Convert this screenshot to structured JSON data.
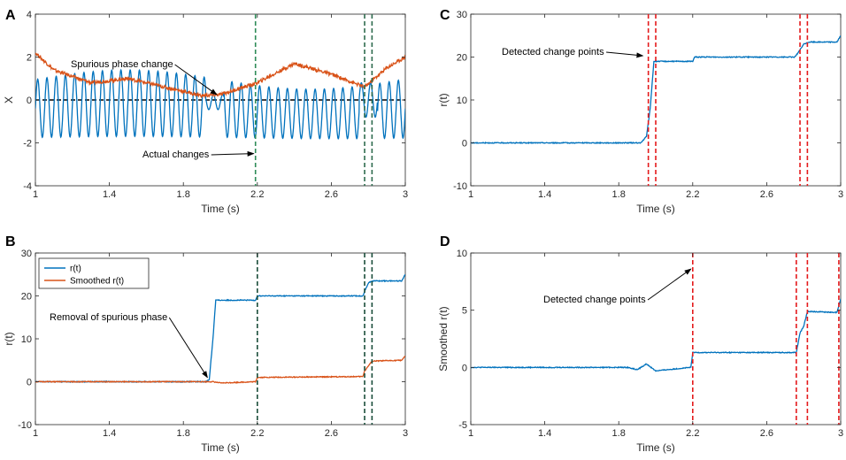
{
  "chart_data": [
    {
      "panel": "A",
      "type": "line",
      "xlabel": "Time (s)",
      "ylabel": "X",
      "xlim": [
        1,
        3
      ],
      "ylim": [
        -4,
        4
      ],
      "xticks": [
        1,
        1.4,
        1.8,
        2.2,
        2.6,
        3
      ],
      "xtick_labels": [
        "1",
        "1.4",
        "1.8",
        "2.2",
        "2.6",
        "3"
      ],
      "yticks": [
        -4,
        -2,
        0,
        2,
        4
      ],
      "ytick_labels": [
        "-4",
        "-2",
        "0",
        "2",
        "4"
      ],
      "series": [
        {
          "name": "signal",
          "color": "#0072BD",
          "description": "oscillating signal, period about 0.05 s, amplitude about 1.3, flattening near 1.95-2.0"
        },
        {
          "name": "envelope",
          "color": "#D95319",
          "values": [
            [
              1.0,
              2.2
            ],
            [
              1.1,
              1.4
            ],
            [
              1.3,
              0.8
            ],
            [
              1.5,
              1.0
            ],
            [
              1.7,
              0.6
            ],
            [
              1.9,
              0.2
            ],
            [
              2.0,
              0.25
            ],
            [
              2.2,
              0.8
            ],
            [
              2.4,
              1.7
            ],
            [
              2.6,
              1.2
            ],
            [
              2.78,
              0.6
            ],
            [
              2.9,
              1.5
            ],
            [
              3.0,
              2.0
            ]
          ]
        }
      ],
      "hlines": [
        {
          "y": 0,
          "style": "dashed",
          "color": "#000000"
        }
      ],
      "vlines": [
        {
          "x": 2.19,
          "color": "#2E8B57"
        },
        {
          "x": 2.78,
          "color": "#2E6B4E"
        },
        {
          "x": 2.82,
          "color": "#2E6B4E"
        }
      ],
      "annotations": [
        {
          "text": "Spurious phase change",
          "target": [
            1.98,
            0.25
          ]
        },
        {
          "text": "Actual changes",
          "target": [
            2.18,
            -2.5
          ]
        }
      ]
    },
    {
      "panel": "B",
      "type": "line",
      "xlabel": "Time (s)",
      "ylabel": "r(t)",
      "xlim": [
        1,
        3
      ],
      "ylim": [
        -10,
        30
      ],
      "xticks": [
        1,
        1.4,
        1.8,
        2.2,
        2.6,
        3
      ],
      "xtick_labels": [
        "1",
        "1.4",
        "1.8",
        "2.2",
        "2.6",
        "3"
      ],
      "yticks": [
        -10,
        0,
        10,
        20,
        30
      ],
      "ytick_labels": [
        "-10",
        "0",
        "10",
        "20",
        "30"
      ],
      "legend": {
        "placement": "top-left",
        "entries": [
          "r(t)",
          "Smoothed r(t)"
        ]
      },
      "series": [
        {
          "name": "r(t)",
          "color": "#0072BD",
          "values": [
            [
              1.0,
              0
            ],
            [
              1.92,
              0
            ],
            [
              1.94,
              0.5
            ],
            [
              1.96,
              10
            ],
            [
              1.975,
              19
            ],
            [
              2.19,
              19
            ],
            [
              2.2,
              20
            ],
            [
              2.77,
              20
            ],
            [
              2.78,
              21
            ],
            [
              2.8,
              23
            ],
            [
              2.82,
              23.5
            ],
            [
              2.98,
              23.5
            ],
            [
              3.0,
              25
            ]
          ]
        },
        {
          "name": "Smoothed r(t)",
          "color": "#D95319",
          "values": [
            [
              1.0,
              0
            ],
            [
              1.96,
              0
            ],
            [
              2.0,
              -0.3
            ],
            [
              2.19,
              0
            ],
            [
              2.2,
              1
            ],
            [
              2.77,
              1.2
            ],
            [
              2.78,
              2.5
            ],
            [
              2.82,
              4.8
            ],
            [
              2.98,
              5
            ],
            [
              3.0,
              6
            ]
          ]
        }
      ],
      "vlines": [
        {
          "x": 2.2,
          "color": "#1A4D3A"
        },
        {
          "x": 2.78,
          "color": "#1A4D3A"
        },
        {
          "x": 2.82,
          "color": "#1A4D3A"
        }
      ],
      "annotations": [
        {
          "text": "Removal of spurious phase",
          "target": [
            1.93,
            1
          ]
        }
      ]
    },
    {
      "panel": "C",
      "type": "line",
      "xlabel": "Time (s)",
      "ylabel": "r(t)",
      "xlim": [
        1,
        3
      ],
      "ylim": [
        -10,
        30
      ],
      "xticks": [
        1,
        1.4,
        1.8,
        2.2,
        2.6,
        3
      ],
      "xtick_labels": [
        "1",
        "1.4",
        "1.8",
        "2.2",
        "2.6",
        "3"
      ],
      "yticks": [
        -10,
        0,
        10,
        20,
        30
      ],
      "ytick_labels": [
        "-10",
        "0",
        "10",
        "20",
        "30"
      ],
      "series": [
        {
          "name": "r(t)",
          "color": "#0072BD",
          "values": [
            [
              1.0,
              0
            ],
            [
              1.92,
              0
            ],
            [
              1.95,
              1.5
            ],
            [
              1.97,
              8
            ],
            [
              1.99,
              19
            ],
            [
              2.2,
              19
            ],
            [
              2.21,
              20
            ],
            [
              2.75,
              20
            ],
            [
              2.77,
              21
            ],
            [
              2.8,
              23
            ],
            [
              2.83,
              23.5
            ],
            [
              2.98,
              23.5
            ],
            [
              3.0,
              25
            ]
          ]
        }
      ],
      "vlines": [
        {
          "x": 1.96,
          "color": "#E41A1C"
        },
        {
          "x": 2.0,
          "color": "#E41A1C"
        },
        {
          "x": 2.78,
          "color": "#E41A1C"
        },
        {
          "x": 2.82,
          "color": "#E41A1C"
        }
      ],
      "annotations": [
        {
          "text": "Detected change points",
          "target": [
            1.93,
            20.3
          ]
        }
      ]
    },
    {
      "panel": "D",
      "type": "line",
      "xlabel": "Time (s)",
      "ylabel": "Smoothed r(t)",
      "xlim": [
        1,
        3
      ],
      "ylim": [
        -5,
        10
      ],
      "xticks": [
        1,
        1.4,
        1.8,
        2.2,
        2.6,
        3
      ],
      "xtick_labels": [
        "1",
        "1.4",
        "1.8",
        "2.2",
        "2.6",
        "3"
      ],
      "yticks": [
        -5,
        0,
        5,
        10
      ],
      "ytick_labels": [
        "-5",
        "0",
        "5",
        "10"
      ],
      "series": [
        {
          "name": "Smoothed r(t)",
          "color": "#0072BD",
          "values": [
            [
              1.0,
              0
            ],
            [
              1.85,
              0
            ],
            [
              1.9,
              -0.2
            ],
            [
              1.95,
              0.3
            ],
            [
              2.0,
              -0.3
            ],
            [
              2.19,
              0
            ],
            [
              2.2,
              1.3
            ],
            [
              2.76,
              1.3
            ],
            [
              2.78,
              3
            ],
            [
              2.8,
              3.6
            ],
            [
              2.82,
              4.9
            ],
            [
              2.98,
              4.8
            ],
            [
              3.0,
              6
            ]
          ]
        }
      ],
      "vlines": [
        {
          "x": 2.2,
          "color": "#E41A1C"
        },
        {
          "x": 2.76,
          "color": "#E41A1C"
        },
        {
          "x": 2.82,
          "color": "#E41A1C"
        },
        {
          "x": 2.99,
          "color": "#E41A1C"
        }
      ],
      "annotations": [
        {
          "text": "Detected change points",
          "target": [
            2.19,
            8.6
          ]
        }
      ]
    }
  ]
}
